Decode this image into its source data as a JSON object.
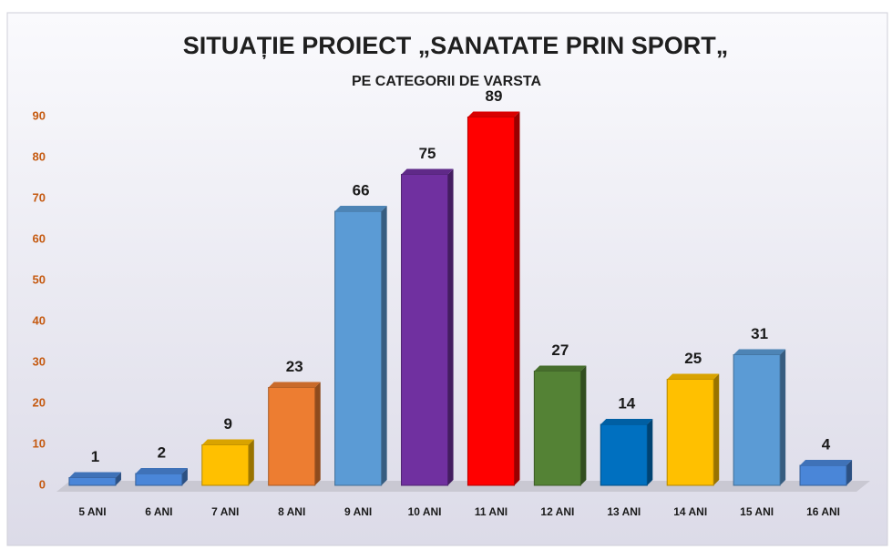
{
  "chart_data": {
    "type": "bar",
    "title": "SITUAȚIE PROIECT „SANATATE PRIN SPORT„",
    "subtitle": "PE CATEGORII DE VARSTA",
    "categories": [
      "5 ANI",
      "6 ANI",
      "7 ANI",
      "8 ANI",
      "9 ANI",
      "10 ANI",
      "11 ANI",
      "12 ANI",
      "13 ANI",
      "14 ANI",
      "15 ANI",
      "16 ANI"
    ],
    "values": [
      1,
      2,
      9,
      23,
      66,
      75,
      89,
      27,
      14,
      25,
      31,
      4
    ],
    "colors": [
      "#4a86d8",
      "#4a86d8",
      "#ffc000",
      "#ed7d31",
      "#5b9bd5",
      "#7030a0",
      "#ff0000",
      "#548235",
      "#0070c0",
      "#ffc000",
      "#5b9bd5",
      "#4a86d8"
    ],
    "ylim": [
      0,
      90
    ],
    "yticks": [
      0,
      10,
      20,
      30,
      40,
      50,
      60,
      70,
      80,
      90
    ],
    "grid": false
  }
}
